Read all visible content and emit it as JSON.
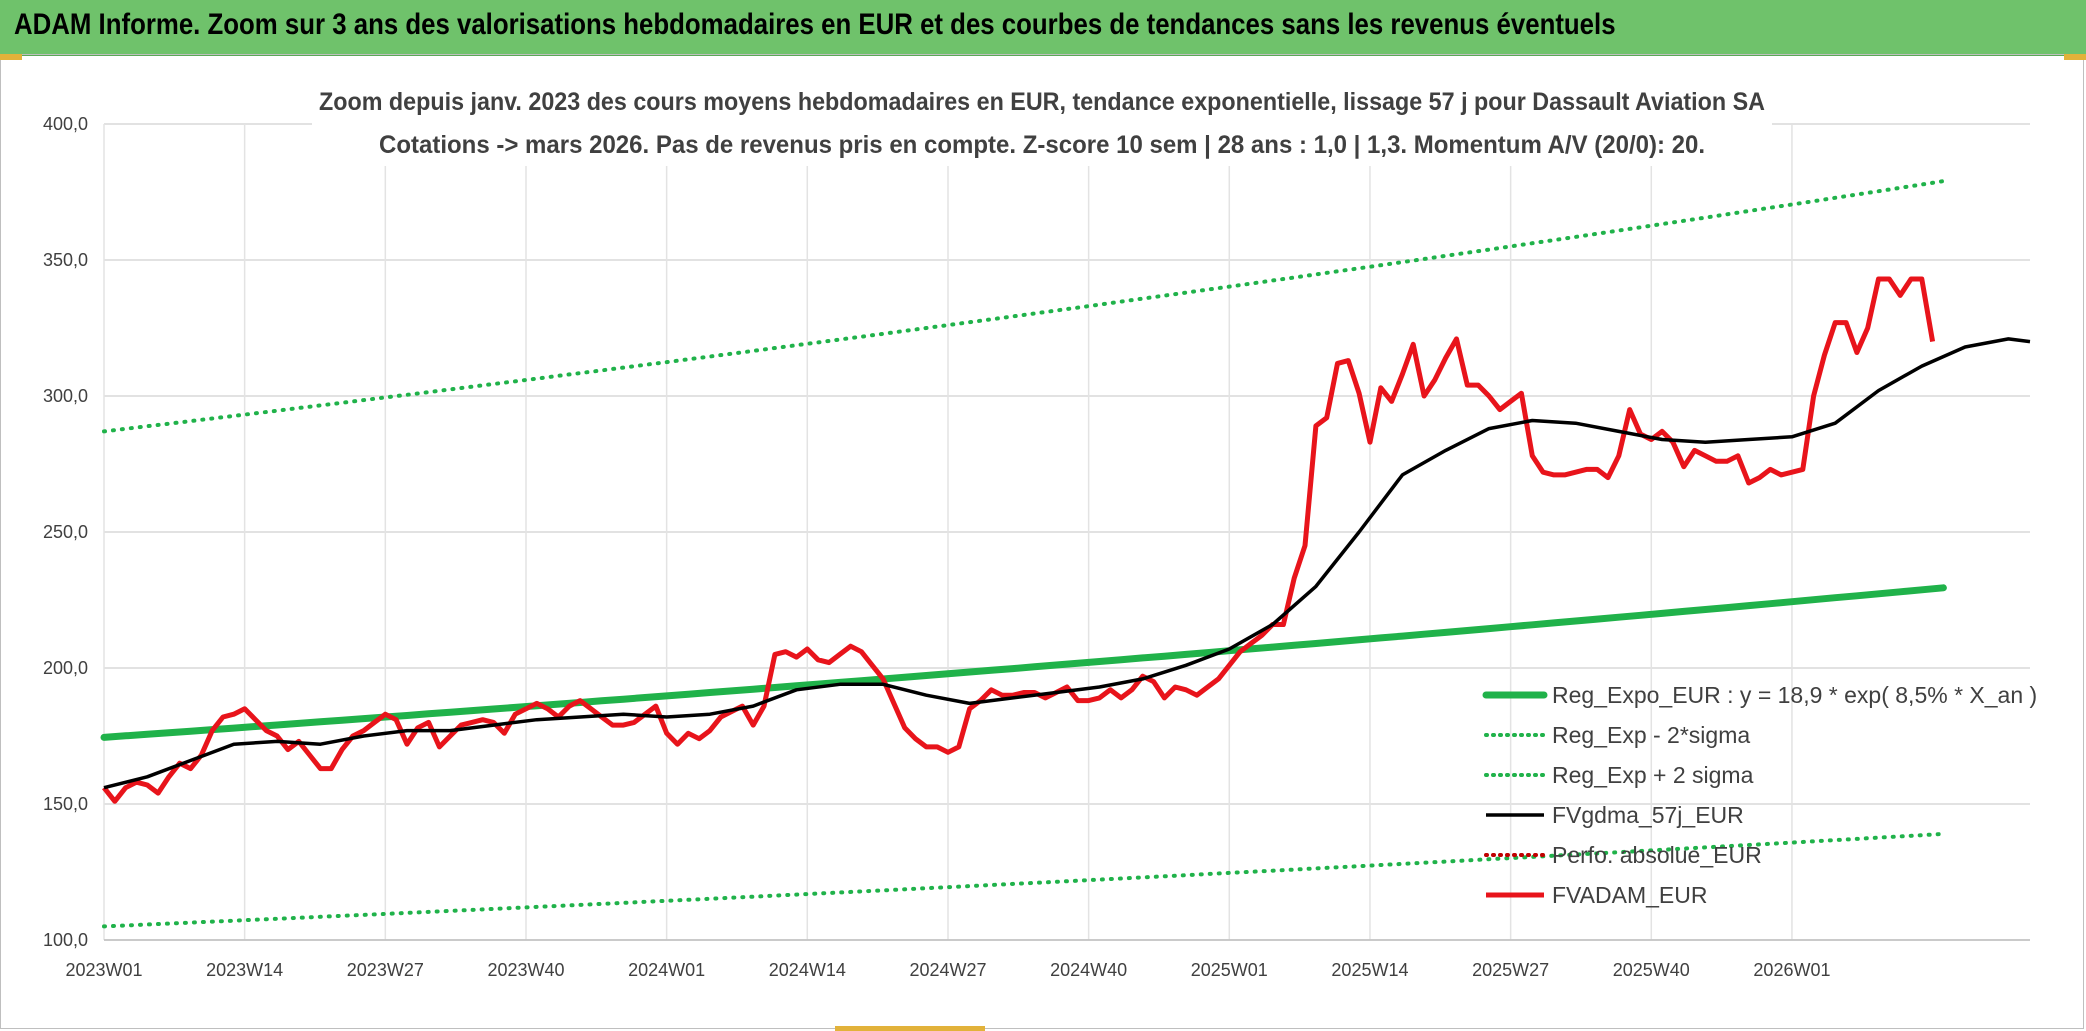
{
  "banner": {
    "title": "ADAM Informe. Zoom sur 3 ans des valorisations hebdomadaires en EUR et des courbes de tendances sans les revenus éventuels"
  },
  "chart_data": {
    "type": "line",
    "title": "Zoom depuis janv. 2023 des cours moyens hebdomadaires en EUR, tendance exponentielle, lissage 57 j pour Dassault Aviation SA",
    "subtitle": "Cotations -> mars 2026. Pas de revenus pris en compte. Z-score 10 sem | 28 ans : 1,0 | 1,3. Momentum A/V (20/0): 20.",
    "xlabel": "",
    "ylabel": "",
    "ylim": [
      100,
      400
    ],
    "yticks": [
      "100,0",
      "150,0",
      "200,0",
      "250,0",
      "300,0",
      "350,0",
      "400,0"
    ],
    "xticks": [
      "2023W01",
      "2023W14",
      "2023W27",
      "2023W40",
      "2024W01",
      "2024W14",
      "2024W27",
      "2024W40",
      "2025W01",
      "2025W14",
      "2025W27",
      "2025W40",
      "2026W01"
    ],
    "x_range_weeks": [
      0,
      170
    ],
    "grid": "vertical and horizontal",
    "legend_placement": "bottom-right",
    "series": [
      {
        "name": "Reg_Expo_EUR : y = 18,9 * exp( 8,5% *  X_an )",
        "style": "thick-solid",
        "color": "#20b24a",
        "points": [
          [
            0,
            174.5
          ],
          [
            170,
            229.5
          ]
        ]
      },
      {
        "name": "Reg_Exp - 2*sigma",
        "style": "dotted",
        "color": "#20b24a",
        "points": [
          [
            0,
            105
          ],
          [
            170,
            139
          ]
        ]
      },
      {
        "name": "Reg_Exp + 2 sigma",
        "style": "dotted",
        "color": "#20b24a",
        "points": [
          [
            0,
            287
          ],
          [
            170,
            379
          ]
        ]
      },
      {
        "name": "FVgdma_57j_EUR",
        "style": "solid",
        "color": "#000000",
        "points": [
          [
            0,
            156
          ],
          [
            4,
            160
          ],
          [
            8,
            166
          ],
          [
            12,
            172
          ],
          [
            16,
            173
          ],
          [
            20,
            172
          ],
          [
            24,
            175
          ],
          [
            28,
            177
          ],
          [
            32,
            177
          ],
          [
            36,
            179
          ],
          [
            40,
            181
          ],
          [
            44,
            182
          ],
          [
            48,
            183
          ],
          [
            52,
            182
          ],
          [
            56,
            183
          ],
          [
            60,
            186
          ],
          [
            64,
            192
          ],
          [
            68,
            194
          ],
          [
            72,
            194
          ],
          [
            76,
            190
          ],
          [
            80,
            187
          ],
          [
            84,
            189
          ],
          [
            88,
            191
          ],
          [
            92,
            193
          ],
          [
            96,
            196
          ],
          [
            100,
            201
          ],
          [
            104,
            207
          ],
          [
            108,
            216
          ],
          [
            112,
            230
          ],
          [
            116,
            250
          ],
          [
            120,
            271
          ],
          [
            124,
            280
          ],
          [
            128,
            288
          ],
          [
            132,
            291
          ],
          [
            136,
            290
          ],
          [
            140,
            287
          ],
          [
            144,
            284
          ],
          [
            148,
            283
          ],
          [
            152,
            284
          ],
          [
            156,
            285
          ],
          [
            160,
            290
          ],
          [
            164,
            302
          ],
          [
            168,
            311
          ],
          [
            172,
            318
          ],
          [
            176,
            321
          ],
          [
            178,
            320
          ]
        ]
      },
      {
        "name": "Perfo. absolue_EUR",
        "style": "dotted",
        "color": "#c00000",
        "points": []
      },
      {
        "name": "FVADAM_EUR",
        "style": "solid",
        "color": "#e8141b",
        "points": [
          [
            0,
            156
          ],
          [
            1,
            151
          ],
          [
            2,
            156
          ],
          [
            3,
            158
          ],
          [
            4,
            157
          ],
          [
            5,
            154
          ],
          [
            6,
            160
          ],
          [
            7,
            165
          ],
          [
            8,
            163
          ],
          [
            9,
            168
          ],
          [
            10,
            177
          ],
          [
            11,
            182
          ],
          [
            12,
            183
          ],
          [
            13,
            185
          ],
          [
            14,
            181
          ],
          [
            15,
            177
          ],
          [
            16,
            175
          ],
          [
            17,
            170
          ],
          [
            18,
            173
          ],
          [
            19,
            168
          ],
          [
            20,
            163
          ],
          [
            21,
            163
          ],
          [
            22,
            170
          ],
          [
            23,
            175
          ],
          [
            24,
            177
          ],
          [
            25,
            180
          ],
          [
            26,
            183
          ],
          [
            27,
            181
          ],
          [
            28,
            172
          ],
          [
            29,
            178
          ],
          [
            30,
            180
          ],
          [
            31,
            171
          ],
          [
            32,
            175
          ],
          [
            33,
            179
          ],
          [
            34,
            180
          ],
          [
            35,
            181
          ],
          [
            36,
            180
          ],
          [
            37,
            176
          ],
          [
            38,
            183
          ],
          [
            39,
            185
          ],
          [
            40,
            187
          ],
          [
            41,
            185
          ],
          [
            42,
            182
          ],
          [
            43,
            186
          ],
          [
            44,
            188
          ],
          [
            45,
            185
          ],
          [
            46,
            182
          ],
          [
            47,
            179
          ],
          [
            48,
            179
          ],
          [
            49,
            180
          ],
          [
            50,
            183
          ],
          [
            51,
            186
          ],
          [
            52,
            176
          ],
          [
            53,
            172
          ],
          [
            54,
            176
          ],
          [
            55,
            174
          ],
          [
            56,
            177
          ],
          [
            57,
            182
          ],
          [
            58,
            184
          ],
          [
            59,
            186
          ],
          [
            60,
            179
          ],
          [
            61,
            186
          ],
          [
            62,
            205
          ],
          [
            63,
            206
          ],
          [
            64,
            204
          ],
          [
            65,
            207
          ],
          [
            66,
            203
          ],
          [
            67,
            202
          ],
          [
            68,
            205
          ],
          [
            69,
            208
          ],
          [
            70,
            206
          ],
          [
            71,
            201
          ],
          [
            72,
            196
          ],
          [
            73,
            187
          ],
          [
            74,
            178
          ],
          [
            75,
            174
          ],
          [
            76,
            171
          ],
          [
            77,
            171
          ],
          [
            78,
            169
          ],
          [
            79,
            171
          ],
          [
            80,
            185
          ],
          [
            81,
            188
          ],
          [
            82,
            192
          ],
          [
            83,
            190
          ],
          [
            84,
            190
          ],
          [
            85,
            191
          ],
          [
            86,
            191
          ],
          [
            87,
            189
          ],
          [
            88,
            191
          ],
          [
            89,
            193
          ],
          [
            90,
            188
          ],
          [
            91,
            188
          ],
          [
            92,
            189
          ],
          [
            93,
            192
          ],
          [
            94,
            189
          ],
          [
            95,
            192
          ],
          [
            96,
            197
          ],
          [
            97,
            195
          ],
          [
            98,
            189
          ],
          [
            99,
            193
          ],
          [
            100,
            192
          ],
          [
            101,
            190
          ],
          [
            102,
            193
          ],
          [
            103,
            196
          ],
          [
            104,
            201
          ],
          [
            105,
            206
          ],
          [
            106,
            209
          ],
          [
            107,
            212
          ],
          [
            108,
            216
          ],
          [
            109,
            216
          ],
          [
            110,
            233
          ],
          [
            111,
            245
          ],
          [
            112,
            289
          ],
          [
            113,
            292
          ],
          [
            114,
            312
          ],
          [
            115,
            313
          ],
          [
            116,
            301
          ],
          [
            117,
            283
          ],
          [
            118,
            303
          ],
          [
            119,
            298
          ],
          [
            120,
            308
          ],
          [
            121,
            319
          ],
          [
            122,
            300
          ],
          [
            123,
            306
          ],
          [
            124,
            314
          ],
          [
            125,
            321
          ],
          [
            126,
            304
          ],
          [
            127,
            304
          ],
          [
            128,
            300
          ],
          [
            129,
            295
          ],
          [
            130,
            298
          ],
          [
            131,
            301
          ],
          [
            132,
            278
          ],
          [
            133,
            272
          ],
          [
            134,
            271
          ],
          [
            135,
            271
          ],
          [
            136,
            272
          ],
          [
            137,
            273
          ],
          [
            138,
            273
          ],
          [
            139,
            270
          ],
          [
            140,
            278
          ],
          [
            141,
            295
          ],
          [
            142,
            286
          ],
          [
            143,
            284
          ],
          [
            144,
            287
          ],
          [
            145,
            283
          ],
          [
            146,
            274
          ],
          [
            147,
            280
          ],
          [
            148,
            278
          ],
          [
            149,
            276
          ],
          [
            150,
            276
          ],
          [
            151,
            278
          ],
          [
            152,
            268
          ],
          [
            153,
            270
          ],
          [
            154,
            273
          ],
          [
            155,
            271
          ],
          [
            156,
            272
          ],
          [
            157,
            273
          ],
          [
            158,
            300
          ],
          [
            159,
            315
          ],
          [
            160,
            327
          ],
          [
            161,
            327
          ],
          [
            162,
            316
          ],
          [
            163,
            325
          ],
          [
            164,
            343
          ],
          [
            165,
            343
          ],
          [
            166,
            337
          ],
          [
            167,
            343
          ],
          [
            168,
            343
          ],
          [
            169,
            320
          ]
        ]
      }
    ]
  }
}
